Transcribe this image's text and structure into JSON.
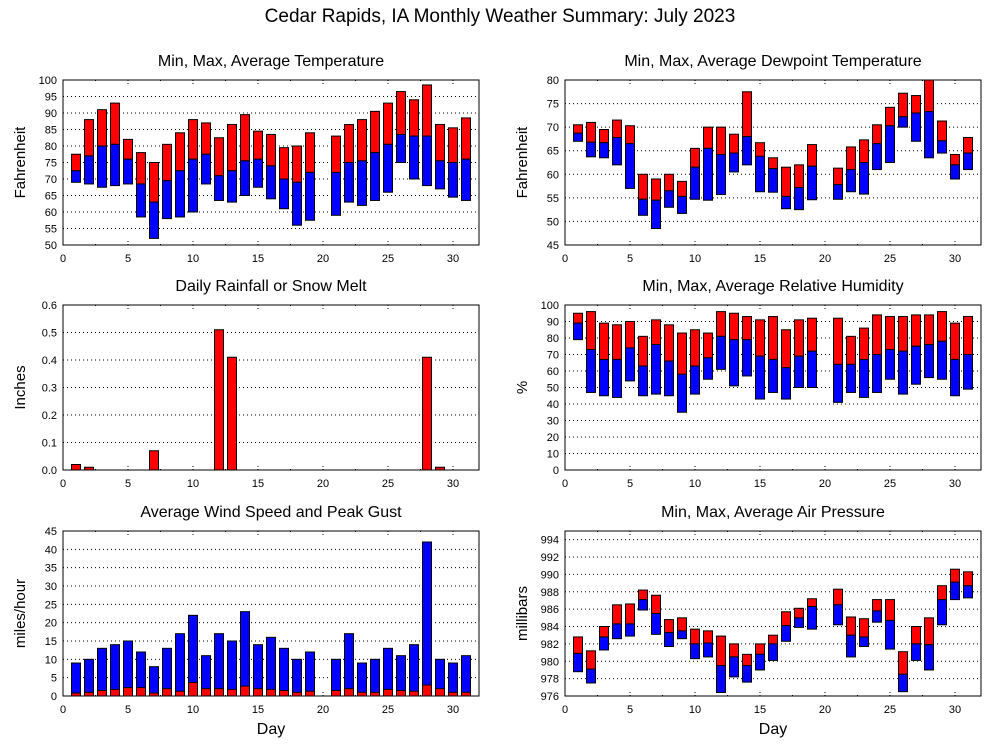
{
  "title": "Cedar Rapids, IA Monthly Weather Summary: July 2023",
  "colors": {
    "upper": "#ff0000",
    "lower": "#0000ff",
    "grid": "#000000"
  },
  "chart_data": [
    {
      "id": "temperature",
      "type": "bar",
      "subtype": "floating-min-avg-max",
      "title": "Min, Max, Average Temperature",
      "xlabel": "",
      "ylabel": "Fahrenheit",
      "xlim": [
        0,
        32
      ],
      "ylim": [
        50,
        100
      ],
      "xticks": [
        0,
        5,
        10,
        15,
        20,
        25,
        30
      ],
      "yticks": [
        50,
        55,
        60,
        65,
        70,
        75,
        80,
        85,
        90,
        95,
        100
      ],
      "grid": true,
      "x": [
        1,
        2,
        3,
        4,
        5,
        6,
        7,
        8,
        9,
        10,
        11,
        12,
        13,
        14,
        15,
        16,
        17,
        18,
        19,
        20,
        21,
        22,
        23,
        24,
        25,
        26,
        27,
        28,
        29,
        30,
        31
      ],
      "max": [
        77.5,
        88,
        91,
        93,
        82,
        78,
        75,
        80.5,
        84,
        88,
        87,
        82.5,
        86.5,
        89.5,
        84.5,
        83.5,
        79.5,
        80,
        84,
        null,
        83,
        86.5,
        88,
        90.5,
        93,
        96.5,
        94,
        98.5,
        86.5,
        85.5,
        88.5
      ],
      "avg": [
        72.5,
        77,
        80,
        80.5,
        76,
        68.5,
        63,
        69.5,
        72.5,
        76,
        77.5,
        71,
        72.5,
        75.5,
        76,
        74,
        70,
        69,
        72,
        null,
        72,
        75,
        75.5,
        78,
        80.5,
        83.5,
        83,
        83,
        75.5,
        75,
        76
      ],
      "min": [
        69,
        68.5,
        67.5,
        68,
        68.5,
        58.5,
        52,
        58,
        58.5,
        60,
        68.5,
        63.5,
        63,
        65,
        67.5,
        64,
        61,
        56,
        57.5,
        null,
        59,
        63,
        62,
        63.5,
        66,
        75,
        70,
        68,
        67,
        64.5,
        63.5
      ]
    },
    {
      "id": "dewpoint",
      "type": "bar",
      "subtype": "floating-min-avg-max",
      "title": "Min, Max, Average Dewpoint Temperature",
      "xlabel": "",
      "ylabel": "Fahrenheit",
      "xlim": [
        0,
        32
      ],
      "ylim": [
        45,
        80
      ],
      "xticks": [
        0,
        5,
        10,
        15,
        20,
        25,
        30
      ],
      "yticks": [
        45,
        50,
        55,
        60,
        65,
        70,
        75,
        80
      ],
      "grid": true,
      "x": [
        1,
        2,
        3,
        4,
        5,
        6,
        7,
        8,
        9,
        10,
        11,
        12,
        13,
        14,
        15,
        16,
        17,
        18,
        19,
        20,
        21,
        22,
        23,
        24,
        25,
        26,
        27,
        28,
        29,
        30,
        31
      ],
      "max": [
        70.5,
        71,
        69.5,
        71.5,
        70.3,
        60,
        59,
        60,
        58.5,
        65.5,
        70,
        70,
        68.5,
        77.5,
        66.7,
        63.5,
        61.5,
        62,
        66.3,
        null,
        61.3,
        65.8,
        67.3,
        70.5,
        74.2,
        77.2,
        76.7,
        80,
        71.3,
        64.2,
        67.8
      ],
      "avg": [
        68.7,
        66.8,
        66.7,
        67.8,
        66.5,
        54.7,
        54.5,
        56.5,
        55.3,
        61.5,
        65.5,
        64.2,
        64.5,
        68,
        63.8,
        61.2,
        55.3,
        57.2,
        61.7,
        null,
        57.8,
        61,
        62.5,
        66.5,
        70.3,
        72.2,
        73,
        73.3,
        67.1,
        62,
        64.5
      ],
      "min": [
        67,
        63.7,
        63.5,
        62,
        57,
        51.3,
        48.5,
        53,
        51.7,
        54.7,
        54.5,
        55.7,
        60.5,
        62,
        56.3,
        56.2,
        52.7,
        52.5,
        54.6,
        null,
        54.7,
        56.3,
        55.8,
        61,
        62.5,
        70,
        67,
        63.5,
        64.5,
        59,
        61
      ]
    },
    {
      "id": "rainfall",
      "type": "bar",
      "title": "Daily Rainfall or Snow Melt",
      "xlabel": "",
      "ylabel": "Inches",
      "xlim": [
        0,
        32
      ],
      "ylim": [
        0.0,
        0.6
      ],
      "xticks": [
        0,
        5,
        10,
        15,
        20,
        25,
        30
      ],
      "yticks": [
        "0.0",
        "0.1",
        "0.2",
        "0.3",
        "0.4",
        "0.5",
        "0.6"
      ],
      "grid": true,
      "x": [
        1,
        2,
        3,
        4,
        5,
        6,
        7,
        8,
        9,
        10,
        11,
        12,
        13,
        14,
        15,
        16,
        17,
        18,
        19,
        20,
        21,
        22,
        23,
        24,
        25,
        26,
        27,
        28,
        29,
        30,
        31
      ],
      "values": [
        0.02,
        0.01,
        0,
        0,
        0,
        0,
        0.07,
        0,
        0,
        0,
        0,
        0.51,
        0.41,
        0,
        0,
        0,
        0,
        0,
        0,
        0,
        0,
        0,
        0,
        0,
        0,
        0,
        0,
        0.41,
        0.01,
        0,
        0
      ]
    },
    {
      "id": "humidity",
      "type": "bar",
      "subtype": "floating-min-avg-max",
      "title": "Min, Max, Average Relative Humidity",
      "xlabel": "",
      "ylabel": "%",
      "xlim": [
        0,
        32
      ],
      "ylim": [
        0,
        100
      ],
      "xticks": [
        0,
        5,
        10,
        15,
        20,
        25,
        30
      ],
      "yticks": [
        0,
        10,
        20,
        30,
        40,
        50,
        60,
        70,
        80,
        90,
        100
      ],
      "grid": true,
      "x": [
        1,
        2,
        3,
        4,
        5,
        6,
        7,
        8,
        9,
        10,
        11,
        12,
        13,
        14,
        15,
        16,
        17,
        18,
        19,
        20,
        21,
        22,
        23,
        24,
        25,
        26,
        27,
        28,
        29,
        30,
        31
      ],
      "max": [
        95,
        96,
        89,
        88,
        90,
        81,
        91,
        88,
        83,
        85,
        83,
        96,
        95,
        93,
        91,
        93,
        85,
        91,
        92,
        null,
        92,
        81,
        86,
        94,
        93,
        93,
        94,
        94,
        96,
        89,
        93
      ],
      "avg": [
        89,
        73,
        67,
        67,
        74,
        63,
        76,
        66,
        58,
        63,
        68,
        81,
        79,
        79,
        69,
        67,
        62,
        69,
        72,
        null,
        64,
        64,
        67,
        70,
        73,
        72,
        75,
        76,
        78,
        67,
        70
      ],
      "min": [
        79,
        47,
        45,
        44,
        54,
        45,
        46,
        45,
        35,
        46,
        55,
        61,
        51,
        57,
        43,
        47,
        43,
        50,
        50,
        null,
        41,
        47,
        44,
        47,
        55,
        46,
        52,
        56,
        55,
        45,
        49
      ]
    },
    {
      "id": "wind",
      "type": "bar",
      "subtype": "overlaid",
      "title": "Average Wind Speed and Peak Gust",
      "xlabel": "Day",
      "ylabel": "miles/hour",
      "xlim": [
        0,
        32
      ],
      "ylim": [
        0,
        45
      ],
      "xticks": [
        0,
        5,
        10,
        15,
        20,
        25,
        30
      ],
      "yticks": [
        0,
        5,
        10,
        15,
        20,
        25,
        30,
        35,
        40,
        45
      ],
      "grid": true,
      "x": [
        1,
        2,
        3,
        4,
        5,
        6,
        7,
        8,
        9,
        10,
        11,
        12,
        13,
        14,
        15,
        16,
        17,
        18,
        19,
        20,
        21,
        22,
        23,
        24,
        25,
        26,
        27,
        28,
        29,
        30,
        31
      ],
      "series": [
        {
          "name": "Peak Gust",
          "color": "#0000ff",
          "values": [
            9,
            10,
            13,
            14,
            15,
            12,
            8,
            13,
            17,
            22,
            11,
            17,
            15,
            23,
            14,
            16,
            13,
            10,
            12,
            null,
            10,
            17,
            9,
            10,
            13,
            11,
            14,
            42,
            10,
            9,
            11
          ]
        },
        {
          "name": "Average Wind Speed",
          "color": "#ff0000",
          "values": [
            0.8,
            1,
            1.5,
            1.8,
            2.3,
            2.3,
            0.8,
            2,
            1.3,
            3.7,
            2,
            2,
            1.8,
            2.7,
            2,
            1.8,
            1.5,
            1,
            1.3,
            null,
            1.5,
            2,
            1,
            1,
            1.8,
            1.5,
            1.3,
            3,
            2,
            1,
            1
          ]
        }
      ]
    },
    {
      "id": "pressure",
      "type": "bar",
      "subtype": "floating-min-avg-max",
      "title": "Min, Max, Average Air Pressure",
      "xlabel": "Day",
      "ylabel": "millibars",
      "xlim": [
        0,
        32
      ],
      "ylim": [
        976,
        995
      ],
      "xticks": [
        0,
        5,
        10,
        15,
        20,
        25,
        30
      ],
      "yticks": [
        976,
        978,
        980,
        982,
        984,
        986,
        988,
        990,
        992,
        994
      ],
      "grid": true,
      "x": [
        1,
        2,
        3,
        4,
        5,
        6,
        7,
        8,
        9,
        10,
        11,
        12,
        13,
        14,
        15,
        16,
        17,
        18,
        19,
        20,
        21,
        22,
        23,
        24,
        25,
        26,
        27,
        28,
        29,
        30,
        31
      ],
      "max": [
        982.8,
        981.2,
        984,
        986.5,
        986.6,
        988.2,
        987.6,
        984.8,
        985,
        983.7,
        983.5,
        982.9,
        982,
        980.8,
        982,
        983,
        985.7,
        986.1,
        987.2,
        null,
        988.3,
        985.1,
        984.9,
        987.1,
        987.1,
        981.1,
        984,
        985,
        988.7,
        990.6,
        990.3
      ],
      "avg": [
        980.9,
        979.1,
        982.8,
        984.3,
        984.3,
        987.1,
        985.5,
        983.3,
        983.5,
        982,
        982.1,
        979.5,
        980.5,
        979.5,
        980.8,
        982,
        984.1,
        985,
        986.3,
        null,
        986.5,
        983,
        982.8,
        985.8,
        984.7,
        978.5,
        982,
        981.9,
        987.1,
        989.1,
        988.7
      ],
      "min": [
        978.8,
        977.5,
        981.3,
        982.6,
        982.9,
        985.9,
        983.1,
        981.7,
        982.6,
        980.3,
        980.5,
        976.4,
        978.2,
        977.6,
        979,
        980.1,
        982.3,
        983.9,
        983.7,
        null,
        984.2,
        980.5,
        981.7,
        984.5,
        981.4,
        976.5,
        980.1,
        979,
        984.2,
        987.1,
        987.3
      ]
    }
  ]
}
